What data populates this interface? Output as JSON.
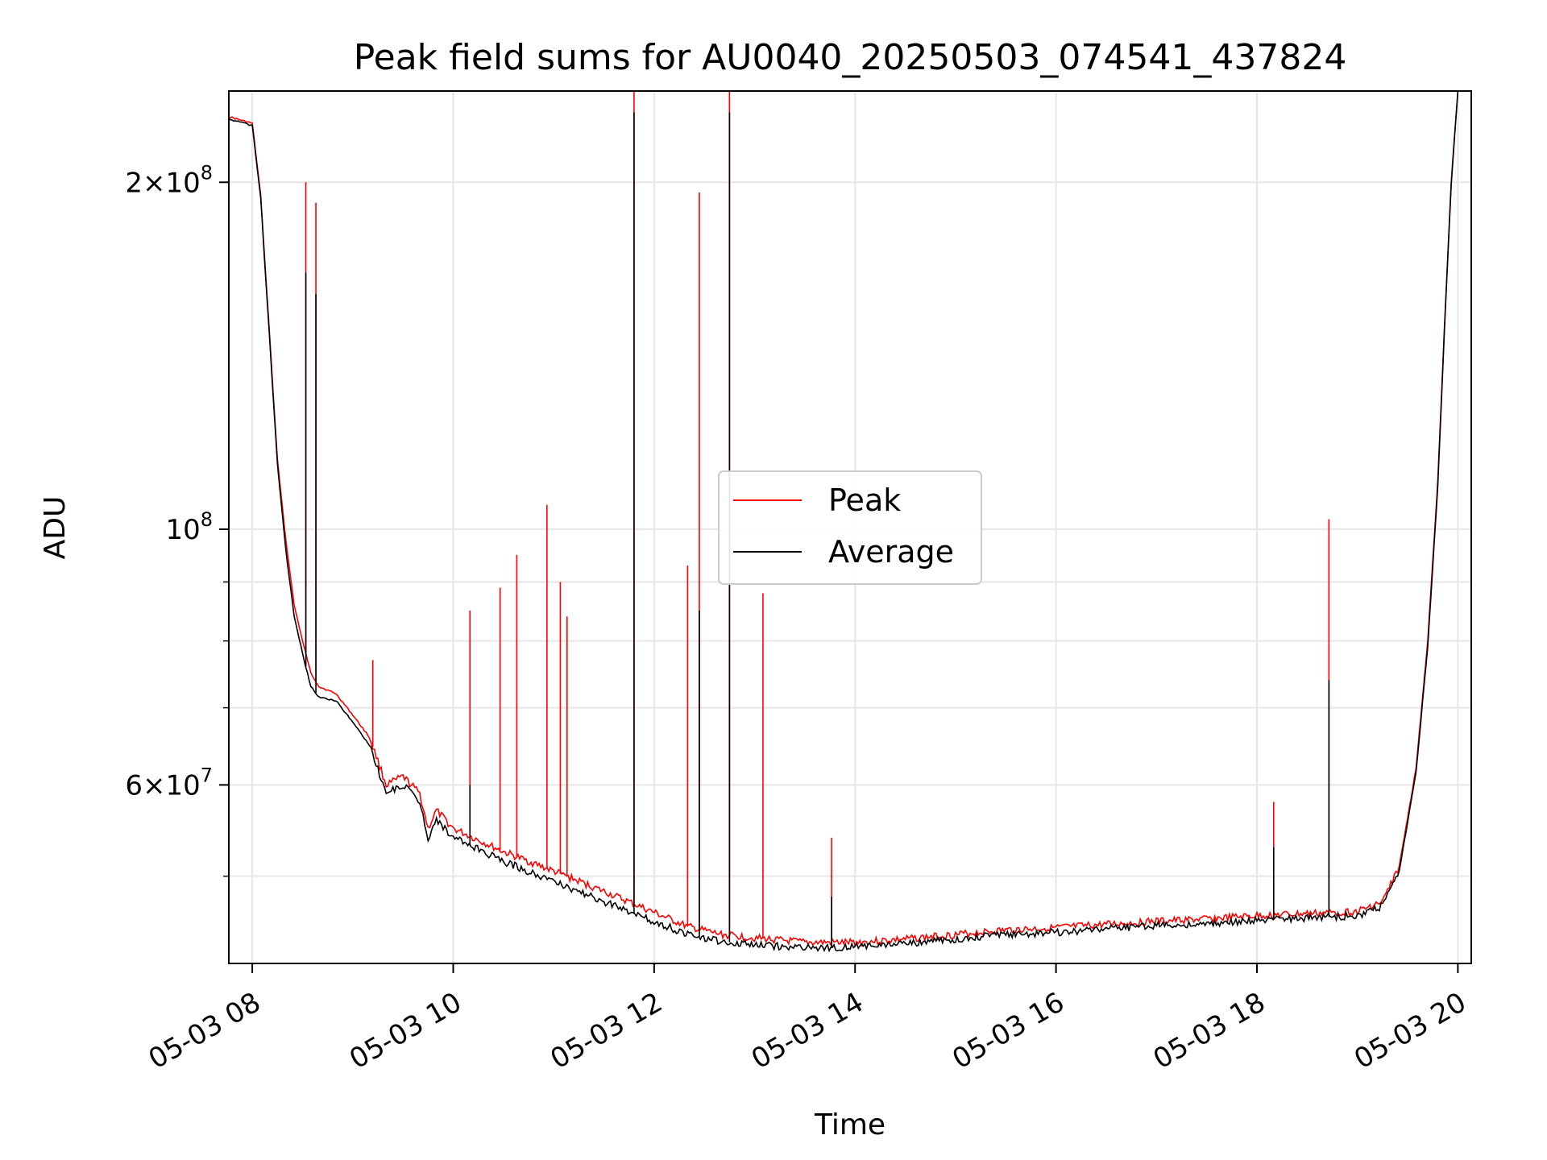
{
  "chart_data": {
    "type": "line",
    "title": "Peak field sums for AU0040_20250503_074541_437824",
    "xlabel": "Time",
    "ylabel": "ADU",
    "yscale": "log",
    "grid": true,
    "legend_position": "center",
    "x_range": [
      "05-03 07:46",
      "05-03 20:08"
    ],
    "ylim": [
      42000000,
      240000000
    ],
    "x_ticks": [
      "05-03 08",
      "05-03 10",
      "05-03 12",
      "05-03 14",
      "05-03 16",
      "05-03 18",
      "05-03 20"
    ],
    "y_ticks": [
      {
        "value": 200000000,
        "mantissa": "2",
        "exponent": "8"
      },
      {
        "value": 100000000,
        "mantissa": "",
        "exponent": "8"
      },
      {
        "value": 60000000,
        "mantissa": "6",
        "exponent": "7"
      }
    ],
    "y_minor_ticks": [
      70000000,
      80000000,
      90000000,
      50000000
    ],
    "series": [
      {
        "name": "Peak",
        "color": "#ff0000",
        "points": [
          [
            "05-03 07:46",
            228000000
          ],
          [
            "05-03 08:00",
            225000000
          ],
          [
            "05-03 08:05",
            195000000
          ],
          [
            "05-03 08:10",
            150000000
          ],
          [
            "05-03 08:15",
            115000000
          ],
          [
            "05-03 08:20",
            98000000
          ],
          [
            "05-03 08:25",
            86000000
          ],
          [
            "05-03 08:30",
            80000000
          ],
          [
            "05-03 08:35",
            75000000
          ],
          [
            "05-03 08:40",
            73000000
          ],
          [
            "05-03 08:50",
            72000000
          ],
          [
            "05-03 09:00",
            69000000
          ],
          [
            "05-03 09:10",
            66000000
          ],
          [
            "05-03 09:20",
            60000000
          ],
          [
            "05-03 09:30",
            61000000
          ],
          [
            "05-03 09:40",
            59000000
          ],
          [
            "05-03 09:45",
            55000000
          ],
          [
            "05-03 09:50",
            57000000
          ],
          [
            "05-03 10:00",
            55000000
          ],
          [
            "05-03 10:30",
            52500000
          ],
          [
            "05-03 11:00",
            50500000
          ],
          [
            "05-03 11:30",
            48500000
          ],
          [
            "05-03 12:00",
            46500000
          ],
          [
            "05-03 12:20",
            45200000
          ],
          [
            "05-03 12:40",
            44500000
          ],
          [
            "05-03 13:00",
            44200000
          ],
          [
            "05-03 13:30",
            43800000
          ],
          [
            "05-03 14:00",
            43800000
          ],
          [
            "05-03 14:30",
            44100000
          ],
          [
            "05-03 15:00",
            44500000
          ],
          [
            "05-03 15:30",
            44900000
          ],
          [
            "05-03 16:00",
            45100000
          ],
          [
            "05-03 16:30",
            45400000
          ],
          [
            "05-03 17:00",
            45700000
          ],
          [
            "05-03 17:30",
            45900000
          ],
          [
            "05-03 18:00",
            46200000
          ],
          [
            "05-03 18:30",
            46400000
          ],
          [
            "05-03 19:00",
            46600000
          ],
          [
            "05-03 19:15",
            47500000
          ],
          [
            "05-03 19:25",
            51000000
          ],
          [
            "05-03 19:35",
            62000000
          ],
          [
            "05-03 19:42",
            80000000
          ],
          [
            "05-03 19:48",
            110000000
          ],
          [
            "05-03 19:52",
            150000000
          ],
          [
            "05-03 19:56",
            200000000
          ],
          [
            "05-03 20:00",
            240000000
          ]
        ],
        "spikes": [
          [
            "05-03 08:32",
            200000000
          ],
          [
            "05-03 08:38",
            192000000
          ],
          [
            "05-03 09:12",
            77000000
          ],
          [
            "05-03 10:10",
            85000000
          ],
          [
            "05-03 10:28",
            89000000
          ],
          [
            "05-03 10:38",
            95000000
          ],
          [
            "05-03 10:56",
            105000000
          ],
          [
            "05-03 11:04",
            90000000
          ],
          [
            "05-03 11:08",
            84000000
          ],
          [
            "05-03 11:48",
            240000000
          ],
          [
            "05-03 12:20",
            93000000
          ],
          [
            "05-03 12:27",
            196000000
          ],
          [
            "05-03 12:45",
            240000000
          ],
          [
            "05-03 13:05",
            88000000
          ],
          [
            "05-03 13:46",
            54000000
          ],
          [
            "05-03 18:10",
            58000000
          ],
          [
            "05-03 18:43",
            102000000
          ]
        ]
      },
      {
        "name": "Average",
        "color": "#000000",
        "points": [
          [
            "05-03 07:46",
            227000000
          ],
          [
            "05-03 08:00",
            224000000
          ],
          [
            "05-03 08:05",
            194000000
          ],
          [
            "05-03 08:10",
            149000000
          ],
          [
            "05-03 08:15",
            114000000
          ],
          [
            "05-03 08:20",
            96000000
          ],
          [
            "05-03 08:25",
            84000000
          ],
          [
            "05-03 08:30",
            78000000
          ],
          [
            "05-03 08:35",
            73000000
          ],
          [
            "05-03 08:40",
            71500000
          ],
          [
            "05-03 08:50",
            71000000
          ],
          [
            "05-03 09:00",
            68000000
          ],
          [
            "05-03 09:10",
            65000000
          ],
          [
            "05-03 09:20",
            59000000
          ],
          [
            "05-03 09:30",
            60000000
          ],
          [
            "05-03 09:40",
            58000000
          ],
          [
            "05-03 09:45",
            54000000
          ],
          [
            "05-03 09:50",
            56000000
          ],
          [
            "05-03 10:00",
            54000000
          ],
          [
            "05-03 10:30",
            51500000
          ],
          [
            "05-03 11:00",
            49500000
          ],
          [
            "05-03 11:30",
            47500000
          ],
          [
            "05-03 12:00",
            45700000
          ],
          [
            "05-03 12:20",
            44500000
          ],
          [
            "05-03 12:40",
            43900000
          ],
          [
            "05-03 13:00",
            43600000
          ],
          [
            "05-03 13:30",
            43300000
          ],
          [
            "05-03 14:00",
            43400000
          ],
          [
            "05-03 14:30",
            43700000
          ],
          [
            "05-03 15:00",
            44100000
          ],
          [
            "05-03 15:30",
            44500000
          ],
          [
            "05-03 16:00",
            44700000
          ],
          [
            "05-03 16:30",
            45000000
          ],
          [
            "05-03 17:00",
            45300000
          ],
          [
            "05-03 17:30",
            45500000
          ],
          [
            "05-03 18:00",
            45800000
          ],
          [
            "05-03 18:30",
            46000000
          ],
          [
            "05-03 19:00",
            46200000
          ],
          [
            "05-03 19:15",
            47100000
          ],
          [
            "05-03 19:25",
            50500000
          ],
          [
            "05-03 19:35",
            61500000
          ],
          [
            "05-03 19:42",
            79000000
          ],
          [
            "05-03 19:48",
            109000000
          ],
          [
            "05-03 19:52",
            149000000
          ],
          [
            "05-03 19:56",
            199000000
          ],
          [
            "05-03 20:00",
            240000000
          ]
        ],
        "spikes": [
          [
            "05-03 08:32",
            167000000
          ],
          [
            "05-03 08:38",
            160000000
          ],
          [
            "05-03 10:10",
            60000000
          ],
          [
            "05-03 11:48",
            230000000
          ],
          [
            "05-03 12:27",
            85000000
          ],
          [
            "05-03 12:45",
            230000000
          ],
          [
            "05-03 13:46",
            48000000
          ],
          [
            "05-03 18:10",
            53000000
          ],
          [
            "05-03 18:43",
            74000000
          ]
        ]
      }
    ]
  }
}
